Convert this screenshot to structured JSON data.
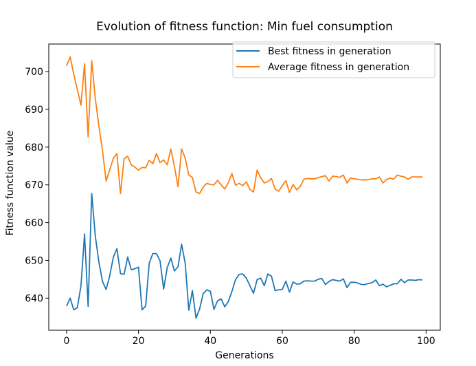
{
  "chart_data": {
    "type": "line",
    "title": "Evolution of fitness function: Min fuel consumption",
    "xlabel": "Generations",
    "ylabel": "Fitness function value",
    "xlim": [
      -4.95,
      103.95
    ],
    "ylim": [
      631.5,
      707.3
    ],
    "xticks": [
      0,
      20,
      40,
      60,
      80,
      100
    ],
    "yticks": [
      640,
      650,
      660,
      670,
      680,
      690,
      700
    ],
    "grid": false,
    "legend_position": "top-right",
    "x": [
      0,
      1,
      2,
      3,
      4,
      5,
      6,
      7,
      8,
      9,
      10,
      11,
      12,
      13,
      14,
      15,
      16,
      17,
      18,
      19,
      20,
      21,
      22,
      23,
      24,
      25,
      26,
      27,
      28,
      29,
      30,
      31,
      32,
      33,
      34,
      35,
      36,
      37,
      38,
      39,
      40,
      41,
      42,
      43,
      44,
      45,
      46,
      47,
      48,
      49,
      50,
      51,
      52,
      53,
      54,
      55,
      56,
      57,
      58,
      59,
      60,
      61,
      62,
      63,
      64,
      65,
      66,
      67,
      68,
      69,
      70,
      71,
      72,
      73,
      74,
      75,
      76,
      77,
      78,
      79,
      80,
      81,
      82,
      83,
      84,
      85,
      86,
      87,
      88,
      89,
      90,
      91,
      92,
      93,
      94,
      95,
      96,
      97,
      98,
      99
    ],
    "series": [
      {
        "name": "Best fitness in generation",
        "color": "#1f77b4",
        "values": [
          637.9,
          640.0,
          636.9,
          637.5,
          643.2,
          657.0,
          637.8,
          667.7,
          656.4,
          649.5,
          644.4,
          642.3,
          645.9,
          650.8,
          653.1,
          646.5,
          646.3,
          650.9,
          647.5,
          647.8,
          648.2,
          636.9,
          637.9,
          649.3,
          651.8,
          651.8,
          649.9,
          642.4,
          648.1,
          650.6,
          647.2,
          648.3,
          654.3,
          649.2,
          636.8,
          642.0,
          634.7,
          637.1,
          641.2,
          642.2,
          641.8,
          637.0,
          639.3,
          639.8,
          637.7,
          639.1,
          641.8,
          644.9,
          646.3,
          646.4,
          645.3,
          643.3,
          641.3,
          644.9,
          645.3,
          643.3,
          646.4,
          645.8,
          642.0,
          642.2,
          642.3,
          644.5,
          641.6,
          644.3,
          643.7,
          643.8,
          644.5,
          644.6,
          644.5,
          644.5,
          645.0,
          645.2,
          643.6,
          644.4,
          644.9,
          644.7,
          644.5,
          645.1,
          642.8,
          644.2,
          644.2,
          644.0,
          643.6,
          643.6,
          643.9,
          644.1,
          644.8,
          643.3,
          643.7,
          643.0,
          643.4,
          643.8,
          643.8,
          645.0,
          644.1,
          644.8,
          644.8,
          644.7,
          644.9,
          644.8
        ]
      },
      {
        "name": "Average fitness in generation",
        "color": "#ff7f0e",
        "values": [
          701.5,
          703.9,
          699.3,
          695.2,
          691.1,
          702.1,
          682.7,
          702.9,
          692.8,
          685.5,
          679.1,
          671.0,
          674.0,
          677.0,
          678.3,
          667.7,
          676.9,
          677.6,
          675.3,
          674.7,
          673.9,
          674.6,
          674.5,
          676.5,
          675.6,
          678.3,
          675.9,
          676.6,
          675.3,
          679.5,
          674.9,
          669.5,
          679.5,
          677.1,
          672.6,
          672.0,
          668.1,
          667.7,
          669.4,
          670.4,
          670.1,
          670.0,
          671.2,
          670.0,
          668.9,
          670.6,
          673.0,
          669.9,
          670.4,
          669.8,
          670.8,
          668.8,
          668.1,
          673.9,
          671.9,
          670.5,
          670.9,
          671.7,
          668.9,
          668.3,
          669.8,
          671.1,
          668.0,
          670.1,
          668.7,
          669.6,
          671.5,
          671.7,
          671.6,
          671.6,
          671.9,
          672.2,
          672.4,
          671.0,
          672.3,
          672.2,
          672.0,
          672.6,
          670.5,
          671.8,
          671.6,
          671.5,
          671.3,
          671.3,
          671.4,
          671.6,
          671.6,
          672.1,
          670.5,
          671.4,
          671.8,
          671.5,
          672.6,
          672.3,
          672.1,
          671.5,
          672.1,
          672.1,
          672.1,
          672.1
        ]
      }
    ]
  }
}
